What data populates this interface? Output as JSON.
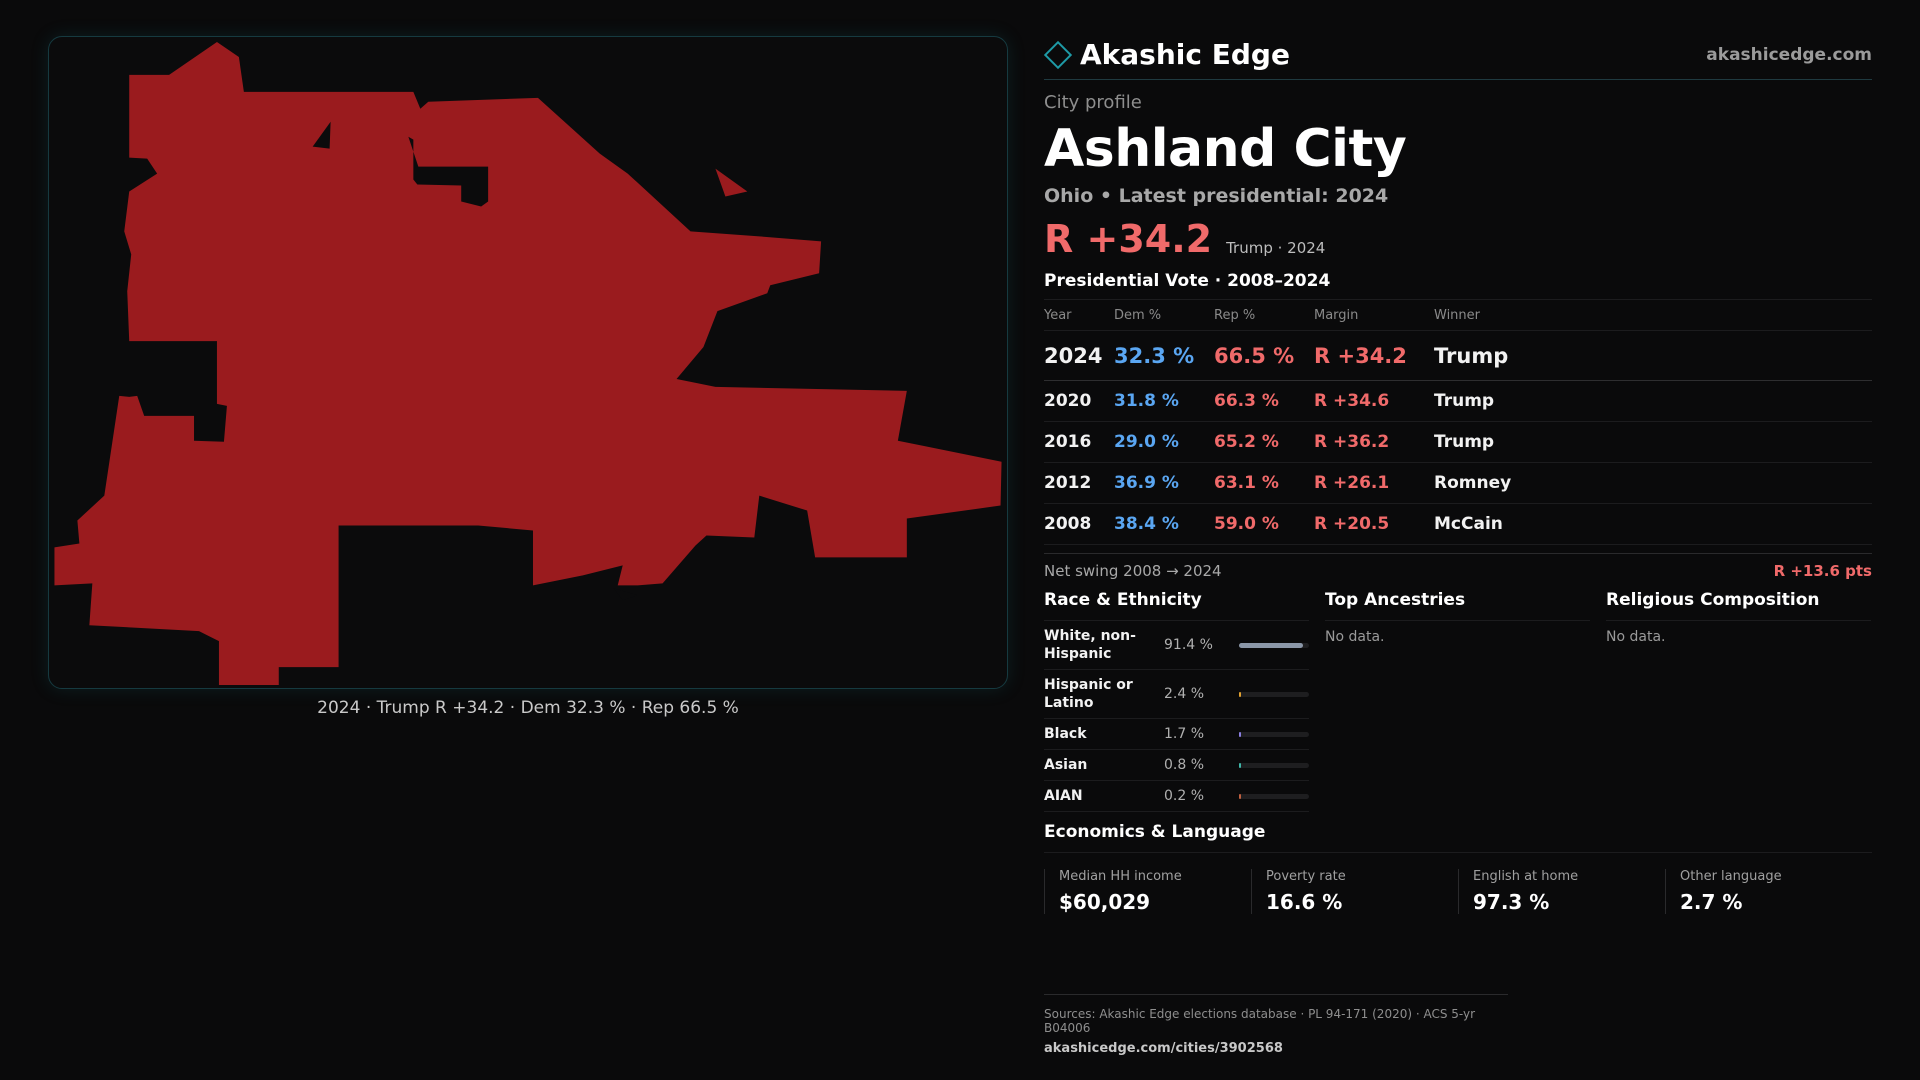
{
  "brand": {
    "name": "Akashic Edge",
    "site": "akashicedge.com"
  },
  "header": {
    "kicker": "City profile",
    "city": "Ashland City",
    "subline": "Ohio • Latest presidential: 2024",
    "margin": "R +34.2",
    "margin_note": "Trump · 2024"
  },
  "map": {
    "fill_color": "#9a1b1e",
    "caption": "2024 · Trump R +34.2 · Dem 32.3 % · Rep 66.5 %"
  },
  "votes": {
    "title": "Presidential Vote · 2008–2024",
    "headers": [
      "Year",
      "Dem %",
      "Rep %",
      "Margin",
      "Winner"
    ],
    "rows": [
      [
        "2024",
        "32.3 %",
        "66.5 %",
        "R +34.2",
        "Trump"
      ],
      [
        "2020",
        "31.8 %",
        "66.3 %",
        "R +34.6",
        "Trump"
      ],
      [
        "2016",
        "29.0 %",
        "65.2 %",
        "R +36.2",
        "Trump"
      ],
      [
        "2012",
        "36.9 %",
        "63.1 %",
        "R +26.1",
        "Romney"
      ],
      [
        "2008",
        "38.4 %",
        "59.0 %",
        "R +20.5",
        "McCain"
      ]
    ],
    "swing_label": "Net swing 2008 → 2024",
    "swing_value": "R +13.6 pts"
  },
  "race": {
    "title": "Race & Ethnicity",
    "rows": [
      {
        "label": "White, non-Hispanic",
        "pct": "91.4 %",
        "share": 0.914,
        "color": "#8b97a8"
      },
      {
        "label": "Hispanic or Latino",
        "pct": "2.4 %",
        "share": 0.024,
        "color": "#e0a030"
      },
      {
        "label": "Black",
        "pct": "1.7 %",
        "share": 0.017,
        "color": "#8b7fe0"
      },
      {
        "label": "Asian",
        "pct": "0.8 %",
        "share": 0.008,
        "color": "#3fb6a8"
      },
      {
        "label": "AIAN",
        "pct": "0.2 %",
        "share": 0.002,
        "color": "#c06040"
      }
    ]
  },
  "ancestries": {
    "title": "Top Ancestries",
    "empty": "No data."
  },
  "religion": {
    "title": "Religious Composition",
    "empty": "No data."
  },
  "economics": {
    "title": "Economics & Language",
    "items": [
      {
        "label": "Median HH income",
        "value": "$60,029"
      },
      {
        "label": "Poverty rate",
        "value": "16.6 %"
      },
      {
        "label": "English at home",
        "value": "97.3 %"
      },
      {
        "label": "Other language",
        "value": "2.7 %"
      }
    ]
  },
  "sources": {
    "text": "Sources: Akashic Edge elections database · PL 94-171 (2020) · ACS 5-yr B04006",
    "link": "akashicedge.com/cities/3902568"
  }
}
